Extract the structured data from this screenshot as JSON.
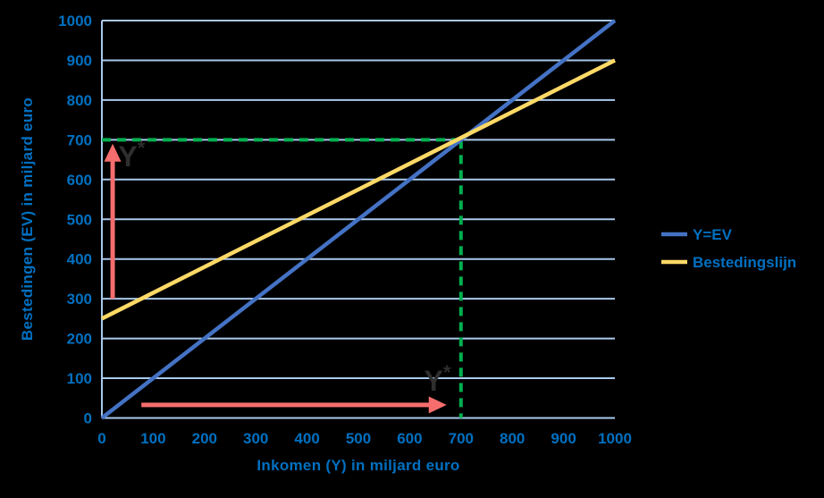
{
  "background": "#000000",
  "plot": {
    "bg": "#000000",
    "grid_color": "#A9C9EC",
    "axis_color": "#A9C9EC",
    "tick_color": "#0070C0",
    "annotation_text_color": "#2E2E2E",
    "arrow_color": "#F66D6D",
    "equilibrium_color": "#00B050"
  },
  "chart_data": {
    "type": "line",
    "title": "",
    "xlabel": "Inkomen (Y) in miljard euro",
    "ylabel": "Bestedingen (EV) in miljard euro",
    "xlim": [
      0,
      1000
    ],
    "ylim": [
      0,
      1000
    ],
    "xticks": [
      0,
      100,
      200,
      300,
      400,
      500,
      600,
      700,
      800,
      900,
      1000
    ],
    "yticks": [
      0,
      100,
      200,
      300,
      400,
      500,
      600,
      700,
      800,
      900,
      1000
    ],
    "grid": "horizontal-only",
    "legend_position": "right-center",
    "series": [
      {
        "name": "Y=EV",
        "color": "#4472C4",
        "points": [
          [
            0,
            0
          ],
          [
            1000,
            1000
          ]
        ]
      },
      {
        "name": "Bestedingslijn",
        "color": "#FFD966",
        "points": [
          [
            0,
            250
          ],
          [
            1000,
            900
          ]
        ]
      }
    ],
    "equilibrium": {
      "x": 700,
      "y": 700,
      "color": "#00B050",
      "h_line": {
        "from": [
          0,
          700
        ],
        "to": [
          700,
          700
        ]
      },
      "v_line": {
        "from": [
          700,
          700
        ],
        "to": [
          700,
          0
        ]
      }
    },
    "annotations": [
      {
        "label": "Y*",
        "text_color": "#2E2E2E",
        "arrow_color": "#F66D6D",
        "arrow": {
          "dir": "up",
          "from": [
            21,
            300
          ],
          "to": [
            21,
            690
          ]
        },
        "label_pos": [
          32,
          633
        ]
      },
      {
        "label": "Y*",
        "text_color": "#2E2E2E",
        "arrow_color": "#F66D6D",
        "arrow": {
          "dir": "right",
          "from": [
            77,
            33
          ],
          "to": [
            672,
            33
          ]
        },
        "label_pos": [
          628,
          69
        ]
      }
    ]
  }
}
